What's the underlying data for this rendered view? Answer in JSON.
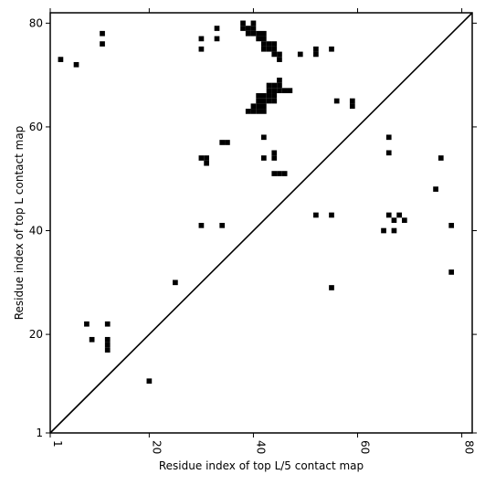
{
  "chart_data": {
    "type": "heatmap",
    "title": "",
    "xlabel": "Residue index of top L/5 contact map",
    "ylabel": "Residue index of top L contact map",
    "xlim": [
      1,
      82
    ],
    "ylim": [
      1,
      82
    ],
    "x_ticks": [
      1,
      20,
      40,
      60,
      80
    ],
    "y_ticks": [
      1,
      20,
      40,
      60,
      80
    ],
    "x_tick_labels": [
      "1",
      "20",
      "40",
      "60",
      "80"
    ],
    "y_tick_labels": [
      "1",
      "20",
      "40",
      "60",
      "80"
    ],
    "diagonal": true,
    "grid": false,
    "cell_color": "#000000",
    "background_color": "#ffffff",
    "cells": [
      [
        3,
        73
      ],
      [
        6,
        72
      ],
      [
        11,
        78
      ],
      [
        11,
        76
      ],
      [
        30,
        77
      ],
      [
        30,
        75
      ],
      [
        33,
        79
      ],
      [
        33,
        77
      ],
      [
        38,
        80
      ],
      [
        38,
        79
      ],
      [
        39,
        79
      ],
      [
        39,
        78
      ],
      [
        40,
        80
      ],
      [
        40,
        79
      ],
      [
        40,
        78
      ],
      [
        41,
        78
      ],
      [
        41,
        77
      ],
      [
        42,
        78
      ],
      [
        42,
        77
      ],
      [
        42,
        76
      ],
      [
        42,
        75
      ],
      [
        43,
        76
      ],
      [
        43,
        75
      ],
      [
        44,
        76
      ],
      [
        44,
        75
      ],
      [
        44,
        74
      ],
      [
        45,
        74
      ],
      [
        45,
        73
      ],
      [
        49,
        74
      ],
      [
        52,
        75
      ],
      [
        52,
        74
      ],
      [
        55,
        75
      ],
      [
        41,
        66
      ],
      [
        41,
        65
      ],
      [
        41,
        64
      ],
      [
        41,
        63
      ],
      [
        42,
        66
      ],
      [
        42,
        65
      ],
      [
        42,
        64
      ],
      [
        42,
        63
      ],
      [
        43,
        68
      ],
      [
        43,
        67
      ],
      [
        43,
        66
      ],
      [
        43,
        65
      ],
      [
        44,
        68
      ],
      [
        44,
        67
      ],
      [
        44,
        66
      ],
      [
        44,
        65
      ],
      [
        45,
        69
      ],
      [
        45,
        68
      ],
      [
        45,
        67
      ],
      [
        46,
        67
      ],
      [
        47,
        67
      ],
      [
        40,
        64
      ],
      [
        40,
        63
      ],
      [
        39,
        63
      ],
      [
        56,
        65
      ],
      [
        59,
        65
      ],
      [
        59,
        64
      ],
      [
        42,
        58
      ],
      [
        42,
        54
      ],
      [
        44,
        55
      ],
      [
        44,
        54
      ],
      [
        34,
        57
      ],
      [
        35,
        57
      ],
      [
        30,
        54
      ],
      [
        31,
        54
      ],
      [
        31,
        53
      ],
      [
        44,
        51
      ],
      [
        45,
        51
      ],
      [
        46,
        51
      ],
      [
        30,
        41
      ],
      [
        34,
        41
      ],
      [
        52,
        43
      ],
      [
        55,
        43
      ],
      [
        66,
        58
      ],
      [
        66,
        55
      ],
      [
        76,
        54
      ],
      [
        75,
        48
      ],
      [
        66,
        43
      ],
      [
        67,
        42
      ],
      [
        68,
        43
      ],
      [
        69,
        42
      ],
      [
        65,
        40
      ],
      [
        67,
        40
      ],
      [
        78,
        41
      ],
      [
        55,
        29
      ],
      [
        78,
        32
      ],
      [
        25,
        30
      ],
      [
        8,
        22
      ],
      [
        12,
        22
      ],
      [
        9,
        19
      ],
      [
        12,
        19
      ],
      [
        12,
        18
      ],
      [
        12,
        17
      ],
      [
        20,
        11
      ]
    ]
  }
}
